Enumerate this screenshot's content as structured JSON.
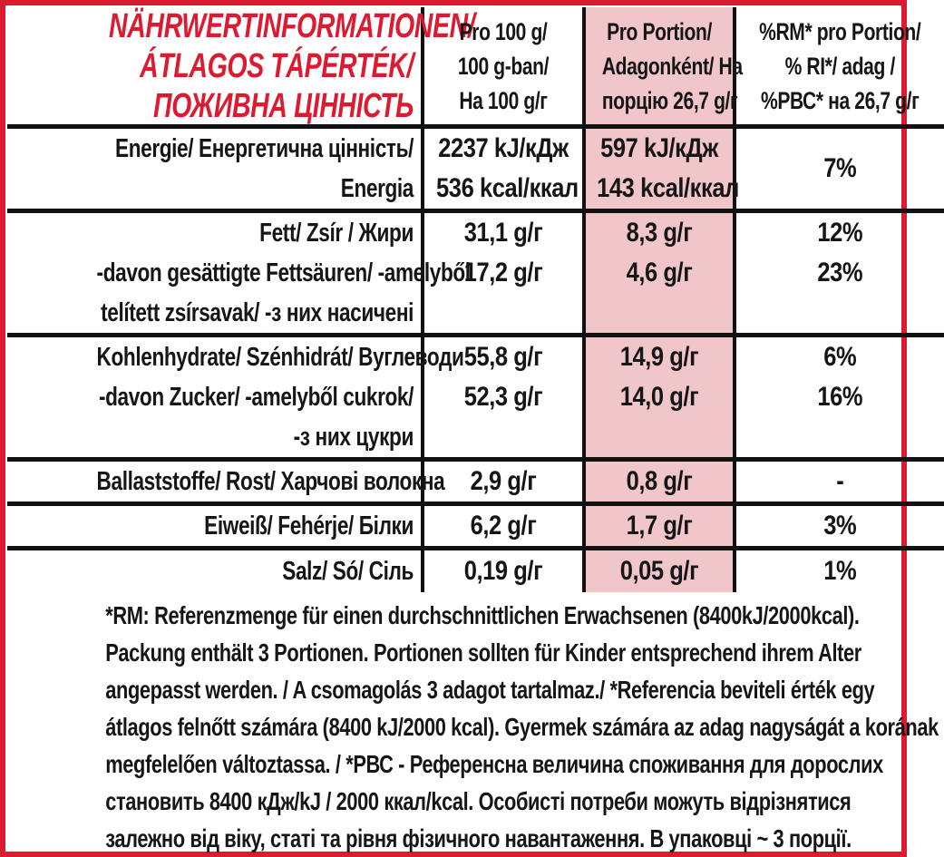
{
  "colors": {
    "accent_red": "#dd1a30",
    "highlight_pink": "#f0c6cb",
    "text_black": "#161616"
  },
  "header": {
    "title_lines": [
      "NÄHRWERTINFORMATIONEN/",
      "ÁTLAGOS TÁPÉRTÉK/",
      "ПОЖИВНА ЦІННІСТЬ"
    ],
    "col_per100_lines": [
      "Pro 100 g/",
      "100 g-ban/",
      "На 100 g/г"
    ],
    "col_portion_lines": [
      "Pro Portion/",
      "Adagonként/ На",
      "порцію 26,7 g/г"
    ],
    "col_rm_lines": [
      "%RM* pro Portion/",
      "% RI*/ adag /",
      "%РВС* на 26,7 g/г"
    ]
  },
  "table": {
    "sections": [
      {
        "name_lines": [
          "Energie/ Енергетична цінність/",
          "Energia"
        ],
        "per100_lines": [
          "2237 kJ/кДж",
          "536 kcal/ккал"
        ],
        "portion_lines": [
          "597 kJ/кДж",
          "143 kcal/ккал"
        ],
        "rm_lines": [
          "7%"
        ]
      },
      {
        "name_lines": [
          "Fett/ Zsír / Жири",
          "-davon gesättigte Fettsäuren/ -amelyből",
          "telített zsírsavak/ -з них насичені"
        ],
        "per100_lines": [
          "31,1 g/г",
          "17,2 g/г"
        ],
        "portion_lines": [
          "8,3 g/г",
          "4,6 g/г"
        ],
        "rm_lines": [
          "12%",
          "23%"
        ]
      },
      {
        "name_lines": [
          "Kohlenhydrate/ Szénhidrát/ Вуглеводи",
          "-davon Zucker/ -amelyből cukrok/",
          "-з них цукри"
        ],
        "per100_lines": [
          "55,8 g/г",
          "52,3 g/г"
        ],
        "portion_lines": [
          "14,9 g/г",
          "14,0 g/г"
        ],
        "rm_lines": [
          "6%",
          "16%"
        ]
      },
      {
        "name_lines": [
          "Ballaststoffe/ Rost/ Харчові волокна"
        ],
        "per100_lines": [
          "2,9 g/г"
        ],
        "portion_lines": [
          "0,8 g/г"
        ],
        "rm_lines": [
          "-"
        ]
      },
      {
        "name_lines": [
          "Eiweiß/ Fehérje/ Білки"
        ],
        "per100_lines": [
          "6,2 g/г"
        ],
        "portion_lines": [
          "1,7 g/г"
        ],
        "rm_lines": [
          "3%"
        ]
      },
      {
        "name_lines": [
          "Salz/ Só/ Сіль"
        ],
        "per100_lines": [
          "0,19 g/г"
        ],
        "portion_lines": [
          "0,05 g/г"
        ],
        "rm_lines": [
          "1%"
        ]
      }
    ]
  },
  "footnote_lines": [
    "*RM: Referenzmenge für einen durchschnittlichen Erwachsenen (8400kJ/2000kcal).",
    "Packung enthält 3 Portionen. Portionen sollten für Kinder entsprechend ihrem Alter",
    "angepasst werden. / A csomagolás 3 adagot tartalmaz./ *Referencia beviteli érték egy",
    "átlagos felnőtt számára (8400 kJ/2000 kcal). Gyermek számára az adag nagyságát a korának",
    "megfelelően változtassa. / *РВС - Референсна величина споживання для дорослих",
    "становить 8400 кДж/kJ / 2000 ккал/kcal. Особисті потреби можуть відрізнятися",
    "залежно від віку, статі та рівня фізичного навантаження. В упаковці ~ 3 порції."
  ]
}
